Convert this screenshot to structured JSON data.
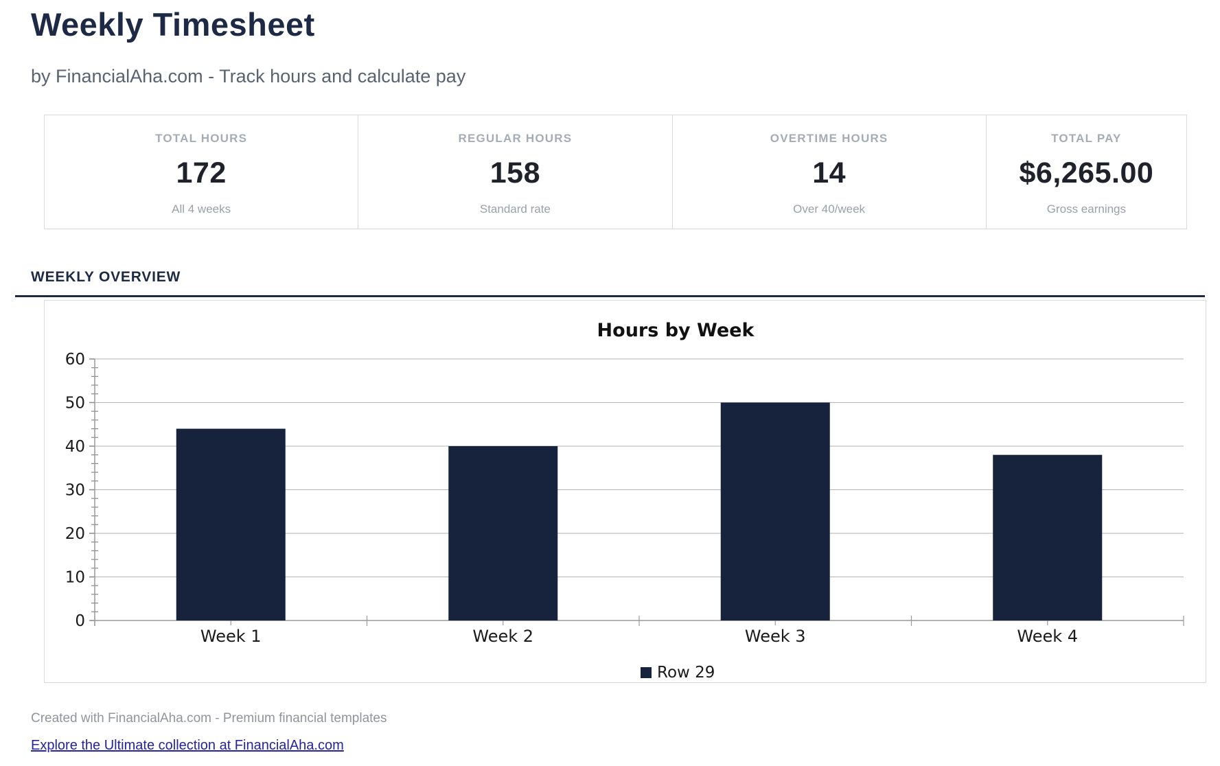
{
  "page": {
    "title": "Weekly Timesheet",
    "subtitle": "by FinancialAha.com - Track hours and calculate pay"
  },
  "stats": {
    "cards": [
      {
        "label": "TOTAL HOURS",
        "value": "172",
        "sub": "All 4 weeks"
      },
      {
        "label": "REGULAR HOURS",
        "value": "158",
        "sub": "Standard rate"
      },
      {
        "label": "OVERTIME HOURS",
        "value": "14",
        "sub": "Over 40/week"
      },
      {
        "label": "TOTAL PAY",
        "value": "$6,265.00",
        "sub": "Gross earnings"
      }
    ]
  },
  "section": {
    "heading": "WEEKLY OVERVIEW"
  },
  "chart_data": {
    "type": "bar",
    "title": "Hours by Week",
    "categories": [
      "Week 1",
      "Week 2",
      "Week 3",
      "Week 4"
    ],
    "series": [
      {
        "name": "Row 29",
        "values": [
          44,
          40,
          50,
          38
        ]
      }
    ],
    "xlabel": "",
    "ylabel": "",
    "ylim": [
      0,
      60
    ],
    "y_major_step": 10,
    "y_minor_step": 2,
    "grid": "horizontal-major-only",
    "legend_position": "bottom",
    "bar_color": "#17233d"
  },
  "footer": {
    "credit": "Created with FinancialAha.com - Premium financial templates",
    "link_text": "Explore the Ultimate collection at FinancialAha.com"
  },
  "colors": {
    "heading_navy": "#1e2a45",
    "bar_navy": "#17233d",
    "grid_gray": "#b2b2b2",
    "border_gray": "#d9d9dd",
    "muted_text": "#9aa0a9",
    "link_blue": "#2323a3",
    "chart_text": "#1a1a1a"
  }
}
